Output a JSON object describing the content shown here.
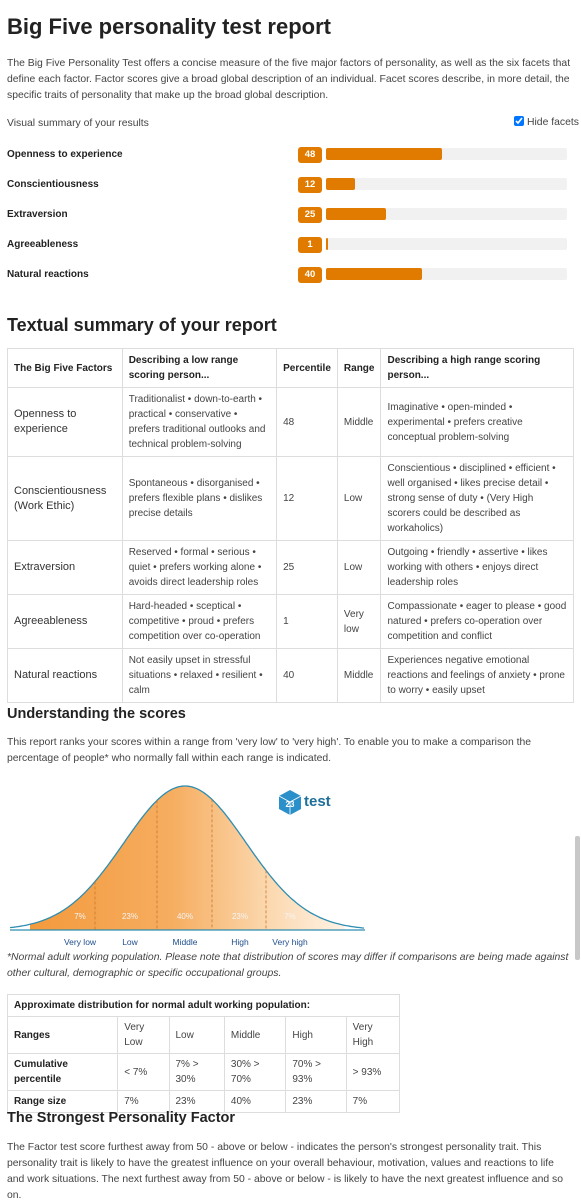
{
  "header": {
    "title": "Big Five personality test report",
    "intro": "The Big Five Personality Test offers a concise measure of the five major factors of personality, as well as the six facets that define each factor. Factor scores give a broad global description of an individual. Facet scores describe, in more detail, the specific traits of personality that make up the broad global description."
  },
  "visual_summary": {
    "label": "Visual summary of your results",
    "toggle_label": "Hide facets",
    "toggle_checked": true,
    "xlim": [
      0,
      100
    ],
    "color": "#e07b00",
    "factors": [
      {
        "name": "Openness to experience",
        "score": 48
      },
      {
        "name": "Conscientiousness",
        "score": 12
      },
      {
        "name": "Extraversion",
        "score": 25
      },
      {
        "name": "Agreeableness",
        "score": 1
      },
      {
        "name": "Natural reactions",
        "score": 40
      }
    ]
  },
  "textual_summary": {
    "title": "Textual summary of your report",
    "headers": [
      "The Big Five Factors",
      "Describing a low range scoring person...",
      "Percentile",
      "Range",
      "Describing a high range scoring person..."
    ],
    "rows": [
      [
        "Openness to experience",
        "Traditionalist • down-to-earth • practical • conservative • prefers traditional outlooks and technical problem-solving",
        48,
        "Middle",
        "Imaginative • open-minded • experimental • prefers creative conceptual problem-solving"
      ],
      [
        "Conscientiousness (Work Ethic)",
        "Spontaneous • disorganised • prefers flexible plans • dislikes precise details",
        12,
        "Low",
        "Conscientious • disciplined • efficient • well organised • likes precise detail • strong sense of duty • (Very High scorers could be described as workaholics)"
      ],
      [
        "Extraversion",
        "Reserved • formal • serious • quiet • prefers working alone • avoids direct leadership roles",
        25,
        "Low",
        "Outgoing • friendly • assertive • likes working with others • enjoys direct leadership roles"
      ],
      [
        "Agreeableness",
        "Hard-headed • sceptical • competitive • proud • prefers competition over co-operation",
        1,
        "Very low",
        "Compassionate • eager to please • good natured • prefers co-operation over competition and conflict"
      ],
      [
        "Natural reactions",
        "Not easily upset in stressful situations • relaxed • resilient • calm",
        40,
        "Middle",
        "Experiences negative emotional reactions and feelings of anxiety • prone to worry • easily upset"
      ]
    ]
  },
  "understanding": {
    "title": "Understanding the scores",
    "text": "This report ranks your scores within a range from 'very low' to 'very high'. To enable you to make a comparison the percentage of people* who normally fall within each range is indicated.",
    "logo_badge": "23",
    "logo_text": "test",
    "segments": [
      {
        "label": "Very low",
        "percent": "7%"
      },
      {
        "label": "Low",
        "percent": "23%"
      },
      {
        "label": "Middle",
        "percent": "40%"
      },
      {
        "label": "High",
        "percent": "23%"
      },
      {
        "label": "Very high",
        "percent": "7%"
      }
    ],
    "note": "*Normal adult working population. Please note that distribution of scores may differ if comparisons are being made against other cultural, demographic or specific occupational groups."
  },
  "distribution": {
    "title": "Approximate distribution for normal adult working population:",
    "rows": [
      [
        "Ranges",
        "Very Low",
        "Low",
        "Middle",
        "High",
        "Very High"
      ],
      [
        "Cumulative percentile",
        "< 7%",
        "7% > 30%",
        "30% > 70%",
        "70% > 93%",
        "> 93%"
      ],
      [
        "Range size",
        "7%",
        "23%",
        "40%",
        "23%",
        "7%"
      ]
    ]
  },
  "strongest": {
    "title": "The Strongest Personality Factor",
    "text": "The Factor test score furthest away from 50 - above or below - indicates the person's strongest personality trait. This personality trait is likely to have the greatest influence on your overall behaviour, motivation, values and reactions to life and work situations. The next furthest away from 50 - above or below - is likely to have the next greatest influence and so on."
  }
}
